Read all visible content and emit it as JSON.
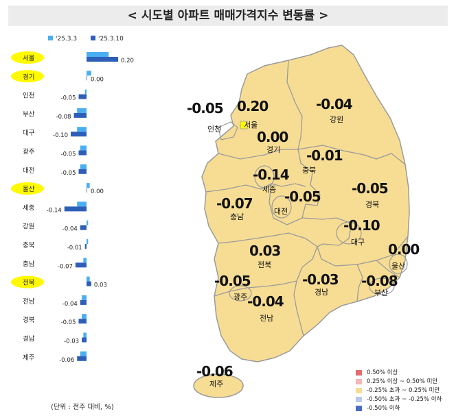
{
  "title": "< 시도별 아파트 매매가격지수 변동률 >",
  "unit_note": "(단위 : 전주 대비, %)",
  "colors": {
    "prev": "#4aaef0",
    "curr": "#2d5fb8",
    "highlight": "#fffa00",
    "map_fill": "#f7dd94",
    "map_border": "#9a9a9a"
  },
  "chart_data": {
    "type": "bar",
    "orientation": "horizontal",
    "categories": [
      "서울",
      "경기",
      "인천",
      "부산",
      "대구",
      "광주",
      "대전",
      "울산",
      "세종",
      "강원",
      "충북",
      "충남",
      "전북",
      "전남",
      "경북",
      "경남",
      "제주"
    ],
    "highlighted": [
      "서울",
      "경기",
      "울산",
      "전북"
    ],
    "series": [
      {
        "name": "'25.3.3",
        "values": [
          0.14,
          0.03,
          -0.01,
          -0.06,
          -0.06,
          -0.04,
          -0.04,
          0.02,
          -0.06,
          0.01,
          0.01,
          -0.02,
          0.02,
          -0.03,
          -0.03,
          -0.02,
          -0.04
        ]
      },
      {
        "name": "'25.3.10",
        "values": [
          0.2,
          0.0,
          -0.05,
          -0.08,
          -0.1,
          -0.05,
          -0.05,
          0.0,
          -0.14,
          -0.04,
          -0.01,
          -0.07,
          0.03,
          -0.04,
          -0.05,
          -0.03,
          -0.06
        ]
      }
    ],
    "data_labels": [
      "0.20",
      "0.00",
      "-0.05",
      "-0.08",
      "-0.10",
      "-0.05",
      "-0.05",
      "0.00",
      "-0.14",
      "-0.04",
      "-0.01",
      "-0.07",
      "0.03",
      "-0.04",
      "-0.05",
      "-0.03",
      "-0.06"
    ],
    "legend_position": "top"
  },
  "map": {
    "regions": [
      {
        "name": "서울",
        "value": "0.20"
      },
      {
        "name": "인천",
        "value": "-0.05"
      },
      {
        "name": "경기",
        "value": "0.00"
      },
      {
        "name": "강원",
        "value": "-0.04"
      },
      {
        "name": "충북",
        "value": "-0.01"
      },
      {
        "name": "세종",
        "value": "-0.14"
      },
      {
        "name": "대전",
        "value": "-0.05"
      },
      {
        "name": "충남",
        "value": "-0.07"
      },
      {
        "name": "경북",
        "value": "-0.05"
      },
      {
        "name": "대구",
        "value": "-0.10"
      },
      {
        "name": "전북",
        "value": "0.03"
      },
      {
        "name": "울산",
        "value": "0.00"
      },
      {
        "name": "광주",
        "value": "-0.05"
      },
      {
        "name": "경남",
        "value": "-0.03"
      },
      {
        "name": "부산",
        "value": "-0.08"
      },
      {
        "name": "전남",
        "value": "-0.04"
      },
      {
        "name": "제주",
        "value": "-0.06"
      }
    ],
    "legend": [
      {
        "label": "0.50% 이상",
        "color": "#e06e6e"
      },
      {
        "label": "0.25% 이상 ~ 0.50% 미만",
        "color": "#f3b7b7"
      },
      {
        "label": "-0.25% 초과 ~ 0.25% 미만",
        "color": "#f7dd94"
      },
      {
        "label": "-0.50% 초과 ~ -0.25% 이하",
        "color": "#b9c9ec"
      },
      {
        "label": "-0.50% 이하",
        "color": "#4a6cc4"
      }
    ]
  }
}
